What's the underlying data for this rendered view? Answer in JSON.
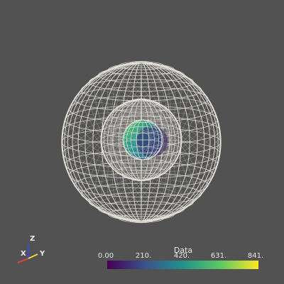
{
  "scalar_bar": {
    "title": "Data",
    "ticks": [
      "0.00",
      "210.",
      "420.",
      "631.",
      "841."
    ],
    "gradient_colors": [
      "#440154",
      "#3b528b",
      "#21918c",
      "#5ec962",
      "#fde725"
    ]
  },
  "axes": {
    "x_label": "X",
    "y_label": "Y",
    "z_label": "Z",
    "x_color": "#e0423a",
    "y_color": "#e8d84a",
    "z_color": "#3a4ad0"
  },
  "scene": {
    "background": "#525252",
    "wire_color": "#e8e4dc",
    "spheres": [
      "outer-sphere",
      "middle-sphere",
      "inner-sphere"
    ]
  }
}
